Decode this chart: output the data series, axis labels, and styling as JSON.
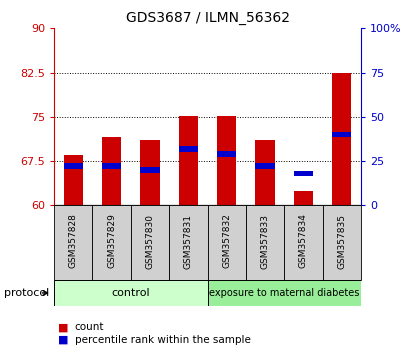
{
  "title": "GDS3687 / ILMN_56362",
  "samples": [
    "GSM357828",
    "GSM357829",
    "GSM357830",
    "GSM357831",
    "GSM357832",
    "GSM357833",
    "GSM357834",
    "GSM357835"
  ],
  "count_values": [
    68.5,
    71.5,
    71.0,
    75.2,
    75.1,
    71.0,
    62.5,
    82.5
  ],
  "percentile_values": [
    22,
    22,
    20,
    32,
    29,
    22,
    18,
    40
  ],
  "ylim_left": [
    60,
    90
  ],
  "ylim_right": [
    0,
    100
  ],
  "yticks_left": [
    60,
    67.5,
    75,
    82.5,
    90
  ],
  "yticks_right": [
    0,
    25,
    50,
    75,
    100
  ],
  "yticklabels_right": [
    "0",
    "25",
    "50",
    "75",
    "100%"
  ],
  "bar_width": 0.5,
  "count_color": "#cc0000",
  "percentile_color": "#0000cc",
  "control_color": "#ccffcc",
  "diabetes_color": "#99ee99",
  "group_label_control": "control",
  "group_label_diabetes": "exposure to maternal diabetes",
  "protocol_label": "protocol",
  "legend_count": "count",
  "legend_percentile": "percentile rank within the sample",
  "grid_yticks": [
    67.5,
    75,
    82.5
  ],
  "ybase": 60
}
